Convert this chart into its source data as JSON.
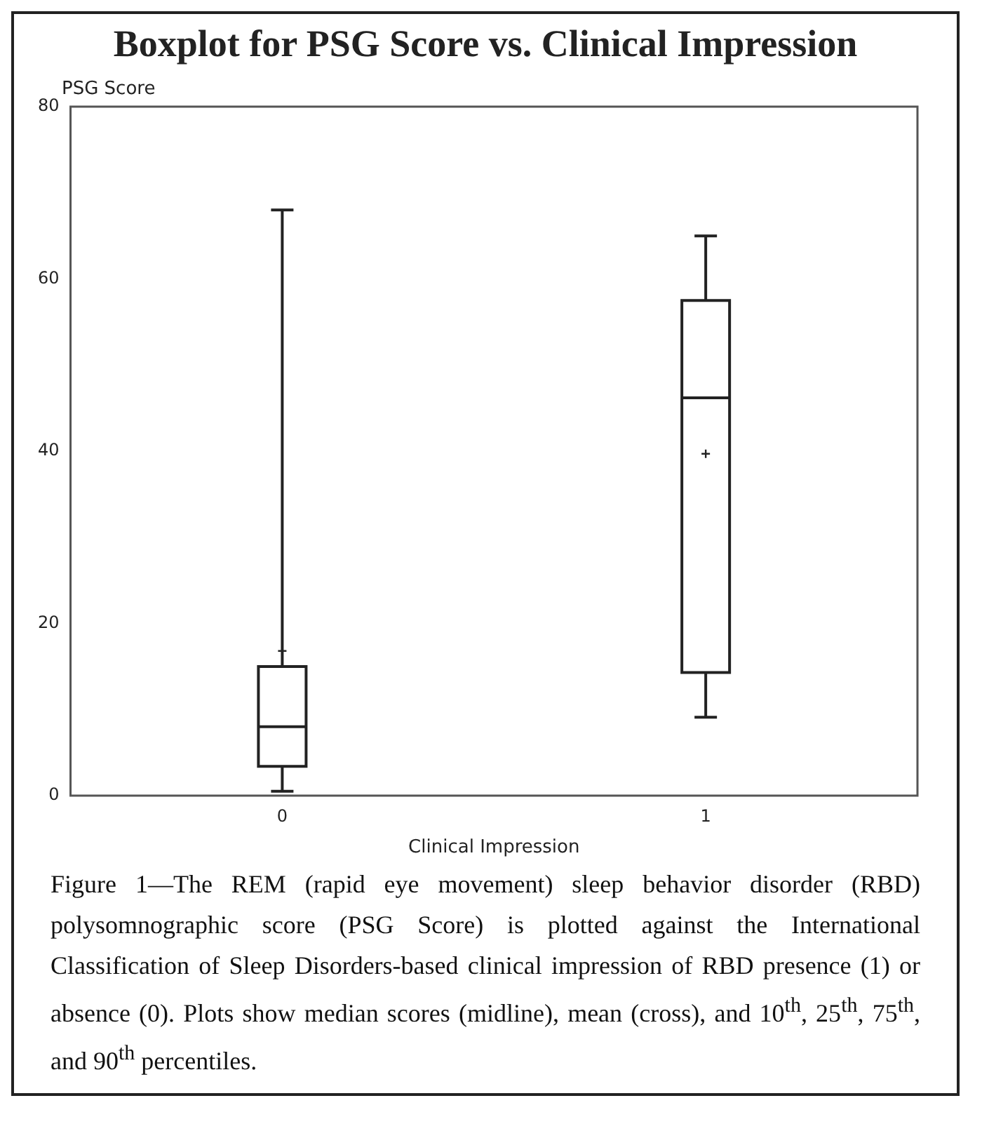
{
  "chart_data": {
    "type": "box",
    "title": "Boxplot for PSG Score vs. Clinical Impression",
    "xlabel": "Clinical Impression",
    "ylabel": "PSG Score",
    "categories": [
      "0",
      "1"
    ],
    "boxes": [
      {
        "low": 0.5,
        "q1": 3.4,
        "median": 8,
        "q3": 15,
        "high": 68,
        "mean": 16.8
      },
      {
        "low": 9.1,
        "q1": 14.3,
        "median": 46.2,
        "q3": 57.5,
        "high": 65,
        "mean": 39.7
      }
    ],
    "ylim": [
      0,
      80
    ],
    "yticks": [
      0,
      20,
      40,
      60,
      80
    ],
    "grid": false,
    "legend": false,
    "annotations": [
      "Figure 1—The REM (rapid eye movement) sleep behavior disorder (RBD) polysomnographic score (PSG Score) is plotted against the International Classification of Sleep Disorders-based clinical impression of RBD presence (1) or absence (0). Plots show median scores (midline), mean (cross), and 10$^{th}$, 25$^{th}$, 75$^{th}$, and 90$^{th}$ percentiles."
    ]
  }
}
